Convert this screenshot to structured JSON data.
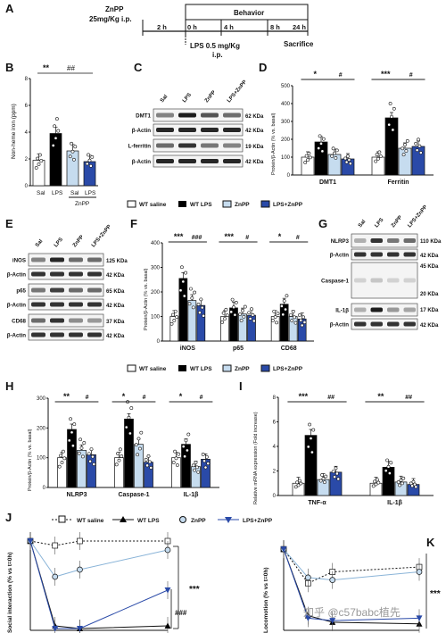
{
  "panelA": {
    "label": "A",
    "drug": "ZnPP",
    "dose": "25mg/Kg i.p.",
    "behavior": "Behavior",
    "times": [
      "2 h",
      "0 h",
      "4 h",
      "8 h",
      "24 h"
    ],
    "lps": "LPS 0.5 mg/Kg",
    "lps2": "i.p.",
    "sacrifice": "Sacrifice"
  },
  "panelB": {
    "label": "B",
    "ylabel": "Non-heme iron (ppm)",
    "yticks": [
      "0",
      "2",
      "4",
      "6",
      "8"
    ],
    "sig": [
      "**",
      "##"
    ],
    "xlabels": [
      "Sal",
      "LPS",
      "Sal",
      "LPS"
    ],
    "group": "ZnPP",
    "chart_data": {
      "type": "bar",
      "categories": [
        "Sal",
        "LPS",
        "ZnPP Sal",
        "ZnPP LPS"
      ],
      "values": [
        1.9,
        3.9,
        2.6,
        1.8
      ],
      "ylim": [
        0,
        8
      ]
    }
  },
  "panelC": {
    "label": "C",
    "lanes": [
      "Sal",
      "LPS",
      "ZnPP",
      "LPS+ZnPP"
    ],
    "rows": [
      "DMT1",
      "β-Actin",
      "L-ferritin",
      "β-Actin"
    ],
    "kda": [
      "62 KDa",
      "42 KDa",
      "19 KDa",
      "42 KDa"
    ]
  },
  "panelD": {
    "label": "D",
    "ylabel": "Protein/β-Actin (% vs. basal)",
    "yticks": [
      "0",
      "100",
      "200",
      "300",
      "400",
      "500"
    ],
    "sig": [
      "*",
      "#",
      "***",
      "#"
    ],
    "categories": [
      "DMT1",
      "Ferritin"
    ],
    "chart_data": {
      "type": "bar",
      "categories": [
        "DMT1",
        "Ferritin"
      ],
      "series": [
        {
          "name": "WT saline",
          "values": [
            100,
            100
          ]
        },
        {
          "name": "WT LPS",
          "values": [
            185,
            320
          ]
        },
        {
          "name": "ZnPP",
          "values": [
            115,
            150
          ]
        },
        {
          "name": "LPS+ZnPP",
          "values": [
            90,
            160
          ]
        }
      ],
      "ylim": [
        0,
        500
      ]
    }
  },
  "legend1": [
    "WT saline",
    "WT LPS",
    "ZnPP",
    "LPS+ZnPP"
  ],
  "panelE": {
    "label": "E",
    "lanes": [
      "Sal",
      "LPS",
      "ZnPP",
      "LPS+ZnPP"
    ],
    "rows": [
      "iNOS",
      "β-Actin",
      "p65",
      "β-Actin",
      "CD68",
      "β-Actin"
    ],
    "kda": [
      "125 KDa",
      "42 KDa",
      "65 KDa",
      "42 KDa",
      "37 KDa",
      "42 KDa"
    ]
  },
  "panelF": {
    "label": "F",
    "ylabel": "Protein/β-Actin (% vs. basal)",
    "yticks": [
      "0",
      "100",
      "200",
      "300",
      "400"
    ],
    "sig": [
      "***",
      "###",
      "***",
      "#",
      "*",
      "#"
    ],
    "categories": [
      "iNOS",
      "p65",
      "CD68"
    ],
    "chart_data": {
      "type": "bar",
      "categories": [
        "iNOS",
        "p65",
        "CD68"
      ],
      "series": [
        {
          "name": "WT saline",
          "values": [
            100,
            100,
            100
          ]
        },
        {
          "name": "WT LPS",
          "values": [
            255,
            135,
            150
          ]
        },
        {
          "name": "ZnPP",
          "values": [
            165,
            110,
            100
          ]
        },
        {
          "name": "LPS+ZnPP",
          "values": [
            145,
            105,
            90
          ]
        }
      ],
      "ylim": [
        0,
        400
      ]
    }
  },
  "panelG": {
    "label": "G",
    "lanes": [
      "Sal",
      "LPS",
      "ZnPP",
      "LPS+ZnPP"
    ],
    "rows": [
      "NLRP3",
      "β-Actin",
      "Caspase-1",
      "IL-1β",
      "β-Actin"
    ],
    "kda": [
      "110 KDa",
      "42 KDa",
      "45 KDa",
      "20 KDa",
      "17 KDa",
      "42 KDa"
    ]
  },
  "legend2": [
    "WT saline",
    "WT LPS",
    "ZnPP",
    "LPS+ZnPP"
  ],
  "panelH": {
    "label": "H",
    "ylabel": "Protein/β-Actin (% vs. basal)",
    "yticks": [
      "0",
      "100",
      "200",
      "300"
    ],
    "sig": [
      "**",
      "#",
      "*",
      "#",
      "*",
      "#"
    ],
    "categories": [
      "NLRP3",
      "Caspase-1",
      "IL-1β"
    ],
    "chart_data": {
      "type": "bar",
      "categories": [
        "NLRP3",
        "Caspase-1",
        "IL-1β"
      ],
      "series": [
        {
          "name": "WT saline",
          "values": [
            100,
            100,
            100
          ]
        },
        {
          "name": "WT LPS",
          "values": [
            195,
            230,
            145
          ]
        },
        {
          "name": "ZnPP",
          "values": [
            125,
            145,
            70
          ]
        },
        {
          "name": "LPS+ZnPP",
          "values": [
            110,
            85,
            95
          ]
        }
      ],
      "ylim": [
        0,
        300
      ]
    }
  },
  "panelI": {
    "label": "I",
    "ylabel": "Relative mRNA expression (Fold increase)",
    "yticks": [
      "0",
      "2",
      "4",
      "6",
      "8"
    ],
    "sig": [
      "***",
      "##",
      "**",
      "##"
    ],
    "categories": [
      "TNF-α",
      "IL-1β"
    ],
    "chart_data": {
      "type": "bar",
      "categories": [
        "TNF-α",
        "IL-1β"
      ],
      "series": [
        {
          "name": "WT saline",
          "values": [
            1.0,
            1.0
          ]
        },
        {
          "name": "WT LPS",
          "values": [
            4.9,
            2.3
          ]
        },
        {
          "name": "ZnPP",
          "values": [
            1.3,
            1.1
          ]
        },
        {
          "name": "LPS+ZnPP",
          "values": [
            1.9,
            0.9
          ]
        }
      ],
      "ylim": [
        0,
        8
      ]
    }
  },
  "legend3": [
    "WT saline",
    "WT LPS",
    "ZnPP",
    "LPS+ZnPP"
  ],
  "panelJ": {
    "label": "J",
    "ylabel": "Social interaction (% vs t=0h)",
    "sig": [
      "***",
      "###"
    ],
    "chart_data": {
      "type": "line",
      "x": [
        0,
        2,
        4,
        24
      ],
      "series": [
        {
          "name": "WT saline",
          "values": [
            100,
            95,
            100,
            100
          ]
        },
        {
          "name": "WT LPS",
          "values": [
            100,
            5,
            2,
            5
          ]
        },
        {
          "name": "ZnPP",
          "values": [
            100,
            60,
            68,
            90
          ]
        },
        {
          "name": "LPS+ZnPP",
          "values": [
            100,
            2,
            2,
            45
          ]
        }
      ],
      "ylim": [
        0,
        110
      ]
    }
  },
  "panelK": {
    "label": "K",
    "ylabel": "Locomotion (% vs t=0h)",
    "sig": [
      "***"
    ],
    "chart_data": {
      "type": "line",
      "x": [
        0,
        2,
        4,
        24
      ],
      "series": [
        {
          "name": "WT saline",
          "values": [
            100,
            58,
            72,
            78
          ]
        },
        {
          "name": "WT LPS",
          "values": [
            100,
            18,
            10,
            8
          ]
        },
        {
          "name": "ZnPP",
          "values": [
            100,
            65,
            62,
            72
          ]
        },
        {
          "name": "LPS+ZnPP",
          "values": [
            100,
            15,
            12,
            15
          ]
        }
      ],
      "ylim": [
        0,
        110
      ]
    }
  },
  "watermark": "知乎 @c57babc植先",
  "colors": {
    "saline": "#ffffff",
    "lps": "#000000",
    "znpp": "#c6dcef",
    "lpsznpp": "#2a4aa8"
  }
}
